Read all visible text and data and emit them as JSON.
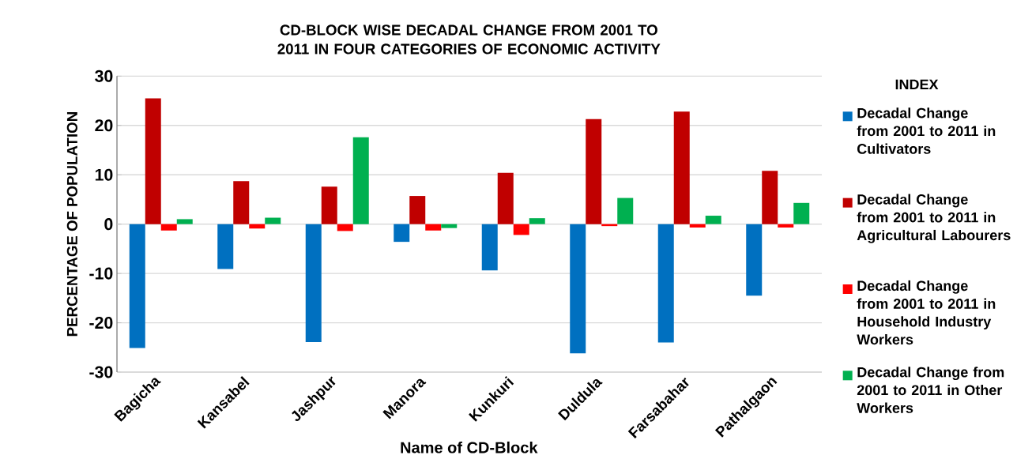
{
  "chart_data": {
    "type": "bar",
    "title": "CD-BLOCK WISE DECADAL CHANGE FROM 2001 TO 2011 IN FOUR CATEGORIES OF ECONOMIC ACTIVITY",
    "xlabel": "Name of CD-Block",
    "ylabel": "PERCENTAGE OF POPULATION",
    "legend_title": "INDEX",
    "categories": [
      "Bagicha",
      "Kansabel",
      "Jashpur",
      "Manora",
      "Kunkuri",
      "Duldula",
      "Farsabahar",
      "Pathalgaon"
    ],
    "series": [
      {
        "name": "Decadal Change from 2001 to 2011 in Cultivators",
        "color": "#0070c0",
        "values": [
          -25.1,
          -9.1,
          -23.9,
          -3.6,
          -9.4,
          -26.2,
          -24.0,
          -14.5
        ]
      },
      {
        "name": "Decadal Change from 2001 to 2011 in Agricultural Labourers",
        "color": "#c00000",
        "values": [
          25.5,
          8.7,
          7.6,
          5.7,
          10.4,
          21.3,
          22.8,
          10.8
        ]
      },
      {
        "name": "Decadal Change from 2001 to 2011 in Household Industry Workers",
        "color": "#ff0000",
        "values": [
          -1.3,
          -0.9,
          -1.4,
          -1.3,
          -2.2,
          -0.4,
          -0.7,
          -0.7
        ]
      },
      {
        "name": "Decadal Change from 2001 to 2011 in Other Workers",
        "color": "#00b050",
        "values": [
          1.0,
          1.3,
          17.6,
          -0.8,
          1.2,
          5.3,
          1.7,
          4.3
        ]
      }
    ],
    "ylim": [
      -30,
      30
    ],
    "yticks": [
      -30,
      -20,
      -10,
      0,
      10,
      20,
      30
    ],
    "grid": "y",
    "legend": "right"
  }
}
